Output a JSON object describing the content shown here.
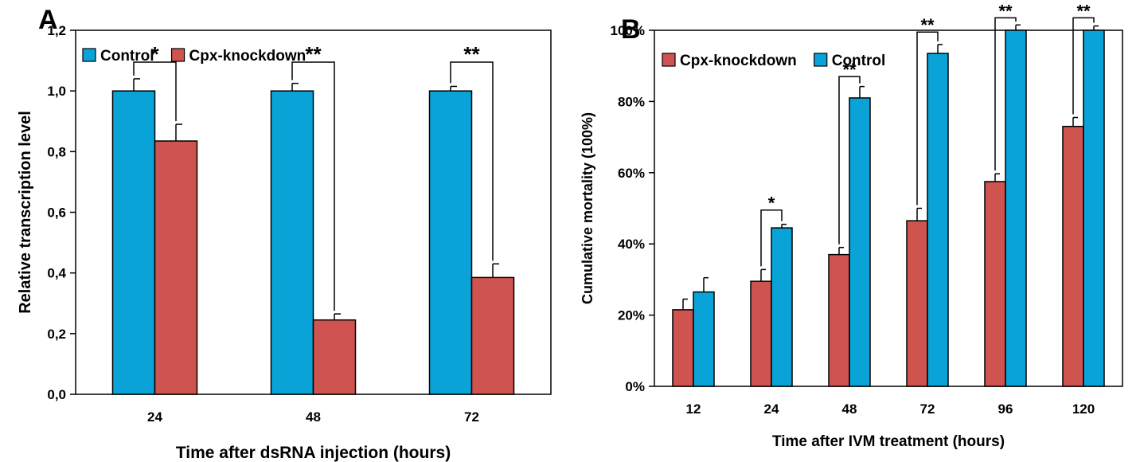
{
  "colors": {
    "control": "#0aa3d8",
    "cpx": "#cf534f",
    "axis": "#000000"
  },
  "chart_data": [
    {
      "panel_label": "A",
      "type": "bar",
      "xlabel": "Time after dsRNA injection (hours)",
      "ylabel": "Relative transcription level",
      "ylim": [
        0,
        1.2
      ],
      "yticks": [
        "0,0",
        "0,2",
        "0,4",
        "0,6",
        "0,8",
        "1,0",
        "1,2"
      ],
      "ytick_values": [
        0,
        0.2,
        0.4,
        0.6,
        0.8,
        1.0,
        1.2
      ],
      "categories": [
        "24",
        "48",
        "72"
      ],
      "legend_position": "top-left",
      "series": [
        {
          "name": "Control",
          "color": "#0aa3d8",
          "values": [
            1.0,
            1.0,
            1.0
          ],
          "errors": [
            0.04,
            0.025,
            0.015
          ]
        },
        {
          "name": "Cpx-knockdown",
          "color": "#cf534f",
          "values": [
            0.835,
            0.245,
            0.385
          ],
          "errors": [
            0.055,
            0.02,
            0.045
          ]
        }
      ],
      "significance": [
        "*",
        "**",
        "**"
      ],
      "sig_levels": [
        1.095,
        1.095,
        1.095
      ]
    },
    {
      "panel_label": "B",
      "type": "bar",
      "xlabel": "Time after IVM treatment (hours)",
      "ylabel": "Cumulative mortality (100%)",
      "ylim": [
        0,
        100
      ],
      "yticks": [
        "0%",
        "20%",
        "40%",
        "60%",
        "80%",
        "100%"
      ],
      "ytick_values": [
        0,
        20,
        40,
        60,
        80,
        100
      ],
      "categories": [
        "12",
        "24",
        "48",
        "72",
        "96",
        "120"
      ],
      "legend_position": "top-left",
      "series": [
        {
          "name": "Cpx-knockdown",
          "color": "#cf534f",
          "values": [
            21.5,
            29.5,
            37,
            46.5,
            57.5,
            73
          ],
          "errors": [
            3,
            3.3,
            2,
            3.5,
            2.2,
            2.5
          ]
        },
        {
          "name": "Control",
          "color": "#0aa3d8",
          "values": [
            26.5,
            44.5,
            81,
            93.5,
            100,
            100
          ],
          "errors": [
            4,
            1,
            3.2,
            2.5,
            1.5,
            1.2
          ]
        }
      ],
      "significance": [
        "",
        "*",
        "**",
        "**",
        "**",
        "**"
      ],
      "sig_levels": [
        0,
        49.5,
        87,
        99.5,
        103.5,
        103.5
      ]
    }
  ]
}
